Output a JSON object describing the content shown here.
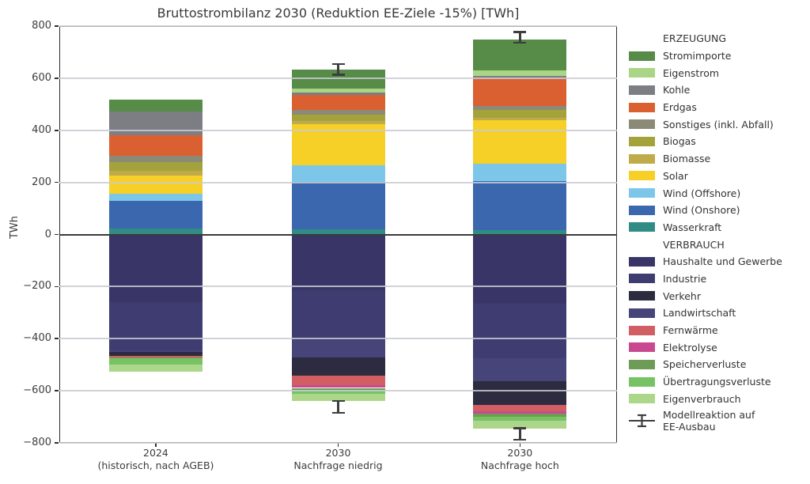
{
  "title": "Bruttostrombilanz 2030 (Reduktion EE-Ziele -15%) [TWh]",
  "y_axis": {
    "label": "TWh",
    "tick_labels": [
      "800",
      "600",
      "400",
      "200",
      "0",
      "−200",
      "−400",
      "−600",
      "−800"
    ]
  },
  "colors": {
    "grid": "rgba(201,203,209,0.85)",
    "zero_line": "#3a3a3a",
    "frame": "#2e2e2e",
    "error_bar": "#3d3d3d",
    "text": "#3c3c3c"
  },
  "chart_data": {
    "type": "bar",
    "stacked": true,
    "unit": "TWh",
    "ylim": [
      -800,
      800
    ],
    "ytick_values": [
      800,
      600,
      400,
      200,
      0,
      -200,
      -400,
      -600,
      -800
    ],
    "grid": "on, drawn over bars",
    "legend_position": "right",
    "categories": [
      {
        "line1": "2024",
        "line2": "(historisch, nach AGEB)"
      },
      {
        "line1": "2030",
        "line2": "Nachfrage niedrig"
      },
      {
        "line1": "2030",
        "line2": "Nachfrage hoch"
      }
    ],
    "generation": {
      "header": "ERZEUGUNG",
      "note": "positive stack, values in TWh per category [2024, 2030 niedrig, 2030 hoch]; listed top-of-stack first",
      "series": [
        {
          "name": "Stromimporte",
          "color": "#568b48",
          "values": [
            46,
            72,
            118
          ]
        },
        {
          "name": "Eigenstrom",
          "color": "#aad585",
          "values": [
            0,
            15,
            20
          ]
        },
        {
          "name": "Kohle",
          "color": "#7c7e84",
          "values": [
            90,
            10,
            10
          ]
        },
        {
          "name": "Erdgas",
          "color": "#da6032",
          "values": [
            79,
            58,
            106
          ]
        },
        {
          "name": "Sonstiges (inkl. Abfall)",
          "color": "#8b8a76",
          "values": [
            25,
            17,
            15
          ]
        },
        {
          "name": "Biogas",
          "color": "#a4a33b",
          "values": [
            34,
            25,
            30
          ]
        },
        {
          "name": "Biomasse",
          "color": "#c0ab4b",
          "values": [
            17,
            11,
            10
          ]
        },
        {
          "name": "Solar",
          "color": "#f6cf27",
          "values": [
            70,
            158,
            167
          ]
        },
        {
          "name": "Wind (Offshore)",
          "color": "#7cc6ea",
          "values": [
            27,
            64,
            66
          ]
        },
        {
          "name": "Wind (Onshore)",
          "color": "#3a67ae",
          "values": [
            107,
            182,
            187
          ]
        },
        {
          "name": "Wasserkraft",
          "color": "#318c85",
          "values": [
            22,
            20,
            18
          ]
        }
      ]
    },
    "consumption": {
      "header": "VERBRAUCH",
      "note": "negative stack (demand), magnitudes in TWh per category [2024, 2030 niedrig, 2030 hoch]; listed in legend order",
      "stack_order": [
        0,
        1,
        3,
        2,
        4,
        5,
        6,
        7,
        8
      ],
      "series": [
        {
          "name": "Haushalte und Gewerbe",
          "color": "#393667",
          "values": [
            260,
            213,
            265
          ]
        },
        {
          "name": "Industrie",
          "color": "#3f3c71",
          "values": [
            185,
            192,
            210
          ]
        },
        {
          "name": "Verkehr",
          "color": "#2c2b40",
          "values": [
            16,
            71,
            91
          ]
        },
        {
          "name": "Landwirtschaft",
          "color": "#474479",
          "values": [
            6,
            66,
            88
          ]
        },
        {
          "name": "Fernwärme",
          "color": "#d05e62",
          "values": [
            5,
            35,
            25
          ]
        },
        {
          "name": "Elektrolyse",
          "color": "#c94990",
          "values": [
            0,
            12,
            10
          ]
        },
        {
          "name": "Speicherverluste",
          "color": "#6d9c56",
          "values": [
            3,
            8,
            12
          ]
        },
        {
          "name": "Übertragungsverluste",
          "color": "#77c364",
          "values": [
            24,
            16,
            13
          ]
        },
        {
          "name": "Eigenverbrauch",
          "color": "#acd78b",
          "values": [
            29,
            27,
            30
          ]
        }
      ]
    },
    "error_bars": {
      "label_line1": "Modellreaktion auf",
      "label_line2": "EE-Ausbau",
      "items": [
        {
          "category_index": 1,
          "top": {
            "center": 634,
            "half_span": 21
          },
          "bottom": {
            "center": -662,
            "half_span": 22
          }
        },
        {
          "category_index": 2,
          "top": {
            "center": 757,
            "half_span": 20
          },
          "bottom": {
            "center": -766,
            "half_span": 22
          }
        }
      ]
    }
  }
}
